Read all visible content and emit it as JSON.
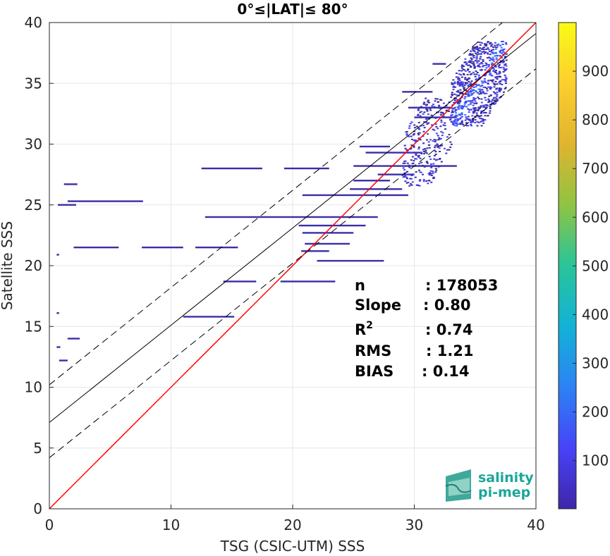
{
  "chart_data": {
    "type": "heatmap",
    "title": "0°≤|LAT|≤ 80°",
    "xlabel": "TSG (CSIC-UTM) SSS",
    "ylabel": "Satellite SSS",
    "xlim": [
      0,
      40
    ],
    "ylim": [
      0,
      40
    ],
    "x_ticks": [
      "0",
      "10",
      "20",
      "30",
      "40"
    ],
    "y_ticks": [
      "0",
      "5",
      "10",
      "15",
      "20",
      "25",
      "30",
      "35",
      "40"
    ],
    "grid": true,
    "colorbar": {
      "range": [
        1,
        1000
      ],
      "ticks": [
        "100",
        "200",
        "300",
        "400",
        "500",
        "600",
        "700",
        "800",
        "900"
      ],
      "colormap": [
        "#3e26a8",
        "#4743f8",
        "#2d82f4",
        "#12b2d6",
        "#29c49a",
        "#8fc442",
        "#e0b42f",
        "#fcce2e",
        "#f9fb15"
      ]
    },
    "lines": [
      {
        "name": "one-to-one",
        "color": "#ff0000",
        "x": [
          0,
          40
        ],
        "y": [
          0,
          40
        ]
      },
      {
        "name": "fit",
        "color": "#000000",
        "x": [
          0,
          40
        ],
        "y": [
          7.1,
          39.1
        ]
      },
      {
        "name": "fit-upper",
        "color": "#000000",
        "dashed": true,
        "x": [
          0,
          40
        ],
        "y": [
          10.2,
          42.2
        ]
      },
      {
        "name": "fit-lower",
        "color": "#000000",
        "dashed": true,
        "x": [
          0,
          40
        ],
        "y": [
          4.2,
          36.2
        ]
      }
    ],
    "stats": [
      {
        "label": "n",
        "value": ": 178053"
      },
      {
        "label": "Slope",
        "value": ": 0.80"
      },
      {
        "label": "R2",
        "value": ": 0.74"
      },
      {
        "label": "RMS",
        "value": ": 1.21"
      },
      {
        "label": "BIAS",
        "value": ": 0.14"
      }
    ],
    "clusters": [
      {
        "x": [
          33,
          37.5
        ],
        "y": [
          31.5,
          38.5
        ],
        "density": "high"
      },
      {
        "x": [
          29,
          33
        ],
        "y": [
          26.5,
          34
        ],
        "density": "medium"
      }
    ],
    "segments": [
      {
        "y": 28.0,
        "x0": 12.5,
        "x1": 17.5
      },
      {
        "y": 28.0,
        "x0": 19.3,
        "x1": 23.0
      },
      {
        "y": 28.2,
        "x0": 25.0,
        "x1": 33.5
      },
      {
        "y": 26.7,
        "x0": 1.2,
        "x1": 2.3
      },
      {
        "y": 25.8,
        "x0": 20.8,
        "x1": 29.5
      },
      {
        "y": 25.3,
        "x0": 1.5,
        "x1": 7.7
      },
      {
        "y": 25.0,
        "x0": 0.7,
        "x1": 2.2
      },
      {
        "y": 24.0,
        "x0": 12.8,
        "x1": 27.0
      },
      {
        "y": 23.3,
        "x0": 20.5,
        "x1": 26.0
      },
      {
        "y": 22.7,
        "x0": 20.8,
        "x1": 25.0
      },
      {
        "y": 21.8,
        "x0": 21.0,
        "x1": 24.7
      },
      {
        "y": 21.5,
        "x0": 2.0,
        "x1": 5.7
      },
      {
        "y": 21.5,
        "x0": 7.6,
        "x1": 11.0
      },
      {
        "y": 21.5,
        "x0": 12.0,
        "x1": 15.5
      },
      {
        "y": 21.2,
        "x0": 20.7,
        "x1": 23.0
      },
      {
        "y": 20.4,
        "x0": 22.0,
        "x1": 27.5
      },
      {
        "y": 18.7,
        "x0": 14.3,
        "x1": 17.0
      },
      {
        "y": 18.7,
        "x0": 19.0,
        "x1": 23.5
      },
      {
        "y": 15.8,
        "x0": 11.0,
        "x1": 15.2
      },
      {
        "y": 20.9,
        "x0": 0.6,
        "x1": 0.8
      },
      {
        "y": 16.1,
        "x0": 0.6,
        "x1": 0.8
      },
      {
        "y": 13.3,
        "x0": 0.6,
        "x1": 0.9
      },
      {
        "y": 12.2,
        "x0": 0.8,
        "x1": 1.5
      },
      {
        "y": 14.0,
        "x0": 1.5,
        "x1": 2.5
      },
      {
        "y": 27.0,
        "x0": 25.0,
        "x1": 28.0
      },
      {
        "y": 26.3,
        "x0": 24.7,
        "x1": 29.0
      },
      {
        "y": 29.3,
        "x0": 26.0,
        "x1": 30.5
      },
      {
        "y": 29.8,
        "x0": 25.5,
        "x1": 28.0
      },
      {
        "y": 27.5,
        "x0": 27.0,
        "x1": 30.0
      },
      {
        "y": 36.6,
        "x0": 31.5,
        "x1": 32.6
      },
      {
        "y": 34.3,
        "x0": 29.0,
        "x1": 31.5
      },
      {
        "y": 33.0,
        "x0": 29.5,
        "x1": 33.0
      },
      {
        "y": 32.2,
        "x0": 30.0,
        "x1": 33.5
      }
    ]
  },
  "logo": {
    "line1": "salinity",
    "line2": "pi-mep"
  }
}
